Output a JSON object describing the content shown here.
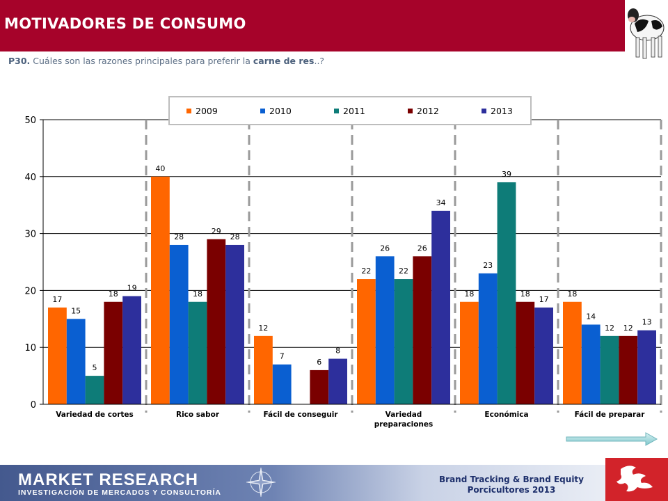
{
  "header": {
    "title": "MOTIVADORES DE CONSUMO",
    "color": "#a6032a"
  },
  "question": {
    "prefix": "P30.",
    "text_a": " Cuáles son las razones principales para preferir la ",
    "highlight": "carne de res",
    "suffix": "..?"
  },
  "chart_data": {
    "type": "bar",
    "categories": [
      "Variedad de cortes",
      "Rico sabor",
      "Fácil de conseguir",
      "Variedad preparaciones",
      "Económica",
      "Fácil de preparar"
    ],
    "category_lines": [
      [
        "Variedad de cortes"
      ],
      [
        "Rico sabor"
      ],
      [
        "Fácil de conseguir"
      ],
      [
        "Variedad",
        "preparaciones"
      ],
      [
        "Económica"
      ],
      [
        "Fácil de preparar"
      ]
    ],
    "series": [
      {
        "name": "2009",
        "color": "#ff6600",
        "values": [
          17,
          40,
          12,
          22,
          18,
          18
        ]
      },
      {
        "name": "2010",
        "color": "#0a5fd1",
        "values": [
          15,
          28,
          7,
          26,
          23,
          14
        ]
      },
      {
        "name": "2011",
        "color": "#0e7c78",
        "values": [
          5,
          18,
          null,
          22,
          39,
          12
        ]
      },
      {
        "name": "2012",
        "color": "#7a0000",
        "values": [
          18,
          29,
          6,
          26,
          18,
          12
        ]
      },
      {
        "name": "2013",
        "color": "#2d2f9c",
        "values": [
          19,
          28,
          8,
          34,
          17,
          13
        ]
      }
    ],
    "y_ticks": [
      "0",
      "10",
      "20",
      "30",
      "40",
      "50"
    ],
    "ylim": [
      0,
      50
    ],
    "grid": true,
    "legend": "top"
  },
  "footer": {
    "brand": "MARKET RESEARCH",
    "brand_sub": "INVESTIGACIÓN DE MERCADOS Y CONSULTORÍA",
    "line1": "Brand Tracking & Brand Equity",
    "line2": "Porcicultores 2013"
  },
  "icons": {
    "cow": "cow-icon",
    "arrow": "next-arrow-icon",
    "compass": "compass-rose-icon",
    "corner": "brand-logo-icon"
  }
}
